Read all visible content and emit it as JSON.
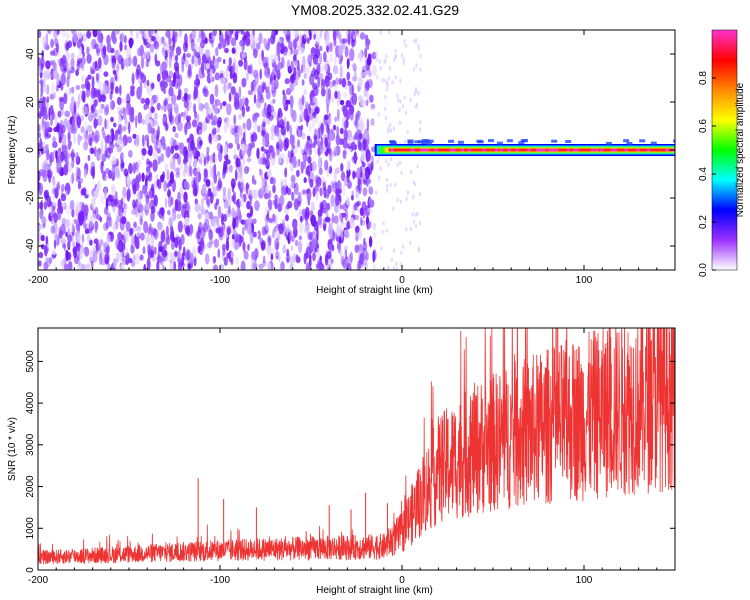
{
  "title": "YM08.2025.332.02.41.G29",
  "chart_data": [
    {
      "type": "heatmap",
      "xlabel": "Height of straight line (km)",
      "ylabel": "Frequency (Hz)",
      "xlim": [
        -200,
        150
      ],
      "ylim": [
        -50,
        50
      ],
      "xticks": [
        -200,
        -100,
        0,
        100
      ],
      "yticks": [
        -40,
        -20,
        0,
        20,
        40
      ],
      "colorbar": {
        "label": "Normalized spectral amplitude",
        "range": [
          0,
          1
        ],
        "ticks": [
          "0.0",
          "0.2",
          "0.4",
          "0.6",
          "0.8"
        ],
        "colors": [
          "#ffffff",
          "#9b30ff",
          "#0000ff",
          "#00ffff",
          "#00ff00",
          "#ffff00",
          "#ff8800",
          "#ff0000",
          "#ff33cc"
        ]
      },
      "noise_region": {
        "x_from": -200,
        "x_to": -15,
        "amplitude": 0.15
      },
      "signal_band": {
        "x_from": -15,
        "x_to": 150,
        "frequency": 0,
        "peak_amplitude": 0.9
      }
    },
    {
      "type": "line",
      "xlabel": "Height of straight line (km)",
      "ylabel": "SNR (10 * v/v)",
      "xlim": [
        -200,
        150
      ],
      "ylim": [
        0,
        5800
      ],
      "xticks": [
        -200,
        -100,
        0,
        100
      ],
      "yticks": [
        0,
        1000,
        2000,
        3000,
        4000,
        5000
      ],
      "color": "#ee3333",
      "trend": [
        [
          -200,
          300
        ],
        [
          -150,
          380
        ],
        [
          -100,
          470
        ],
        [
          -50,
          520
        ],
        [
          -10,
          560
        ],
        [
          0,
          900
        ],
        [
          10,
          1700
        ],
        [
          20,
          2400
        ],
        [
          40,
          2900
        ],
        [
          60,
          3200
        ],
        [
          80,
          3450
        ],
        [
          100,
          3650
        ],
        [
          120,
          3900
        ],
        [
          150,
          4250
        ]
      ],
      "spikes": [
        [
          -112,
          2200
        ],
        [
          -98,
          1700
        ],
        [
          -80,
          1500
        ],
        [
          -40,
          1550
        ],
        [
          -28,
          1450
        ],
        [
          -20,
          1850
        ],
        [
          -8,
          1600
        ],
        [
          20,
          3300
        ],
        [
          35,
          3650
        ],
        [
          65,
          3900
        ],
        [
          80,
          4150
        ],
        [
          95,
          4250
        ],
        [
          110,
          4700
        ],
        [
          115,
          4950
        ],
        [
          138,
          5650
        ],
        [
          142,
          5800
        ],
        [
          147,
          5700
        ]
      ]
    }
  ]
}
